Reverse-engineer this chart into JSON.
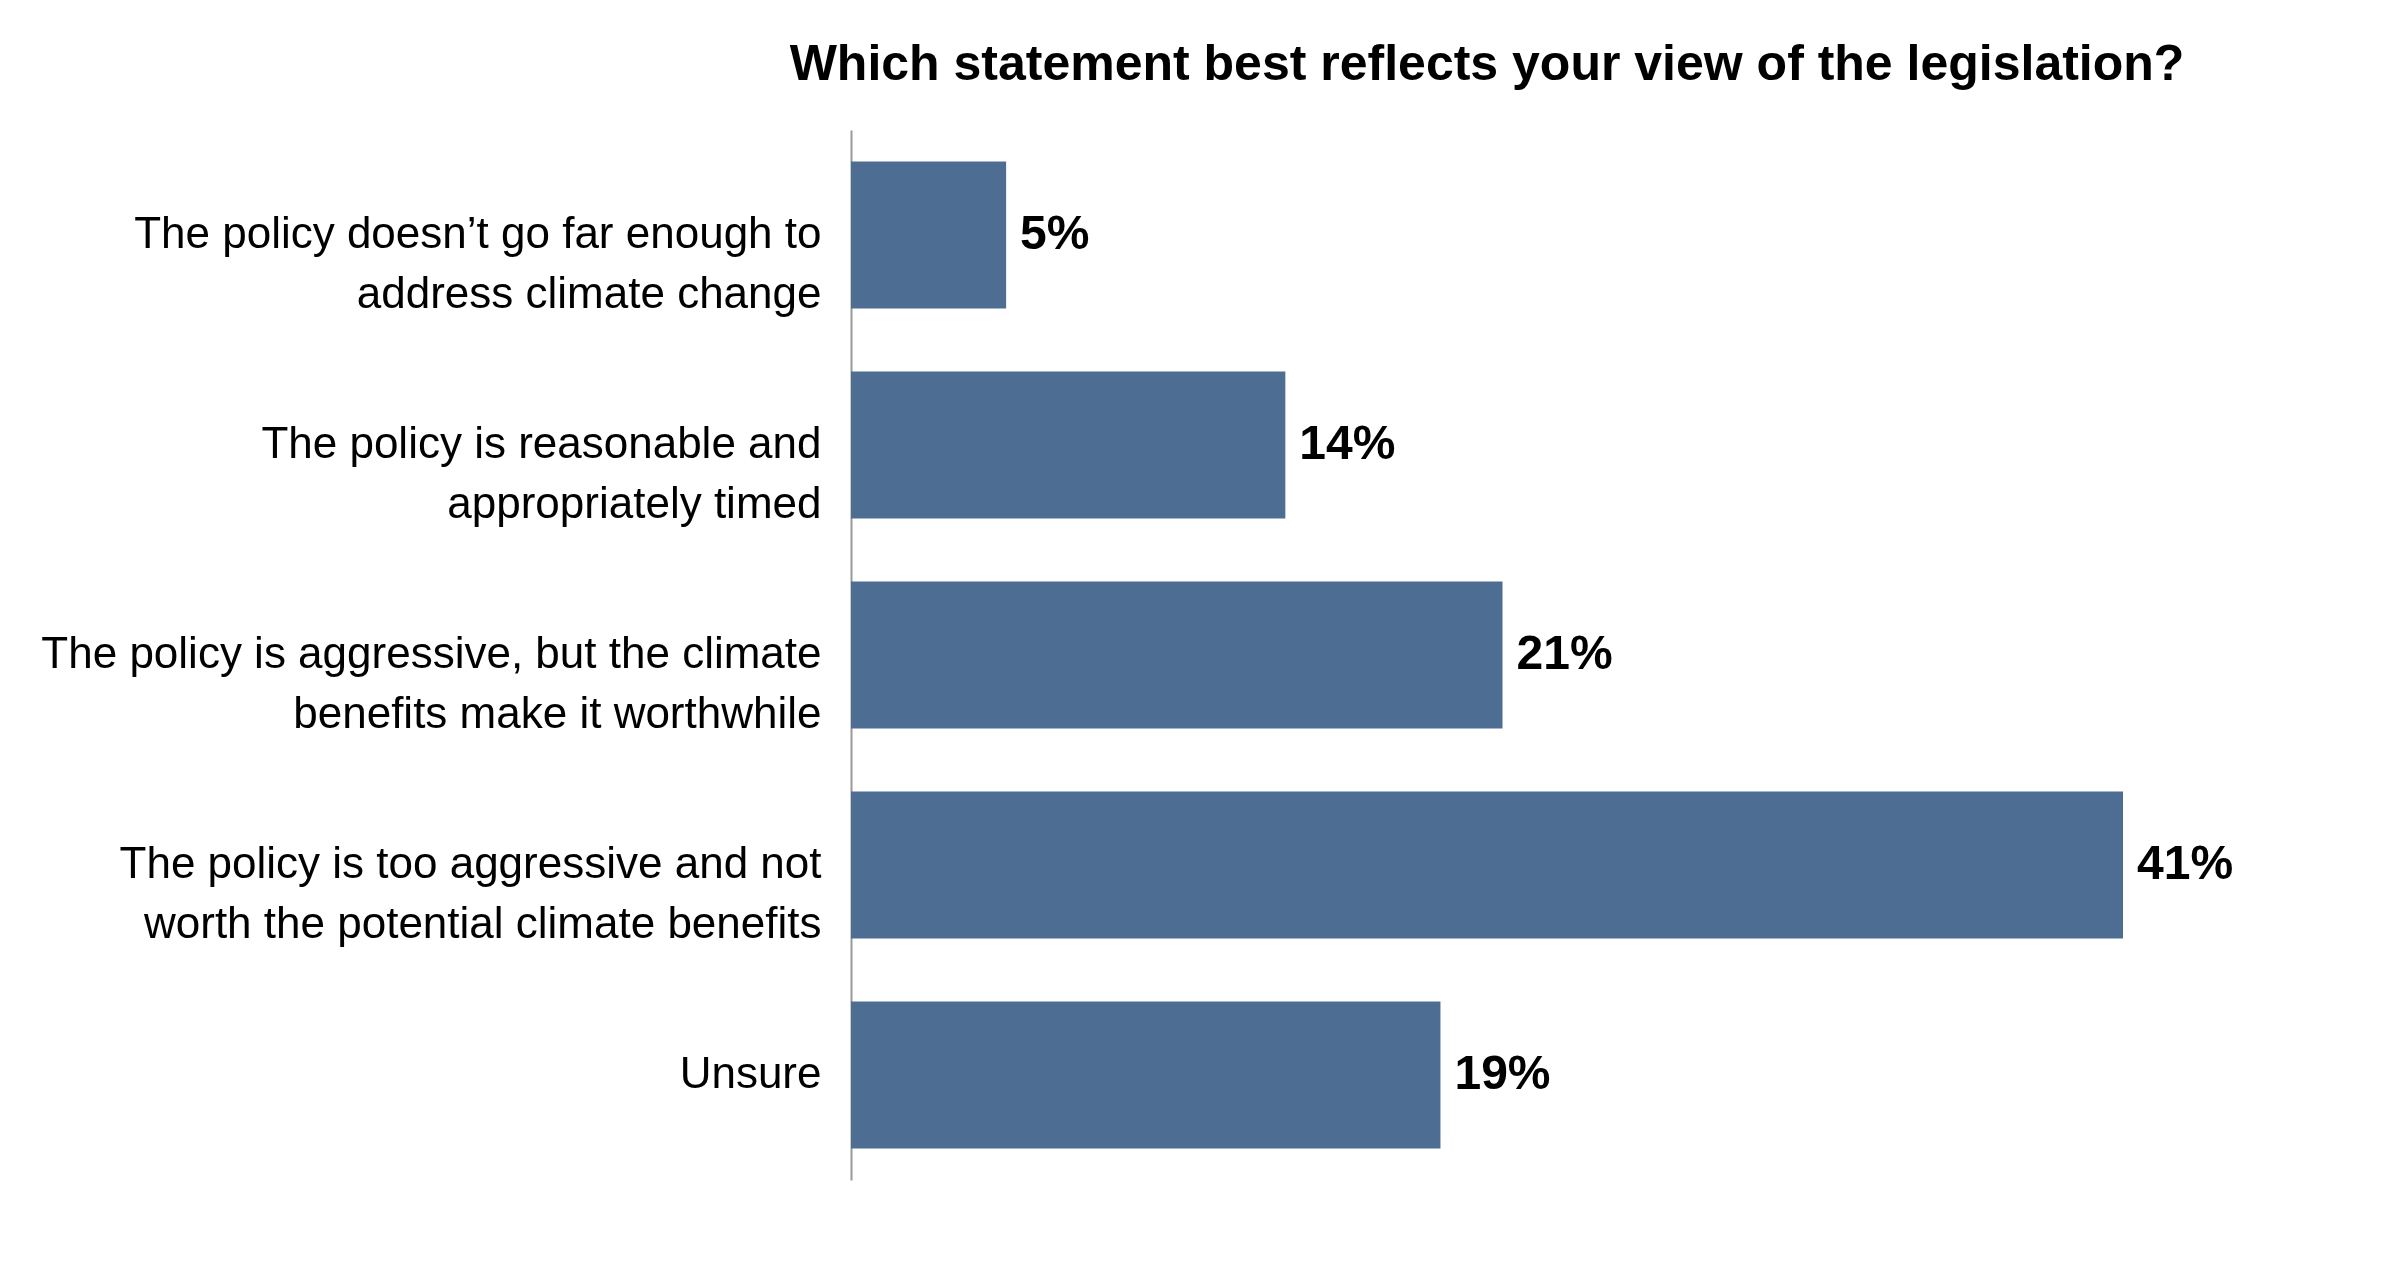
{
  "chart_data": {
    "type": "bar",
    "orientation": "horizontal",
    "title": "Which statement best reflects your view of the legislation?",
    "categories": [
      "The policy doesn’t go far enough to address climate change",
      "The policy is reasonable and appropriately timed",
      "The policy is aggressive, but the climate benefits make it worthwhile",
      "The policy is too aggressive and not worth the potential climate benefits",
      "Unsure"
    ],
    "values": [
      5,
      14,
      21,
      41,
      19
    ],
    "value_labels": [
      "5%",
      "14%",
      "21%",
      "41%",
      "19%"
    ],
    "color": "#4e6d92",
    "grid": false
  }
}
